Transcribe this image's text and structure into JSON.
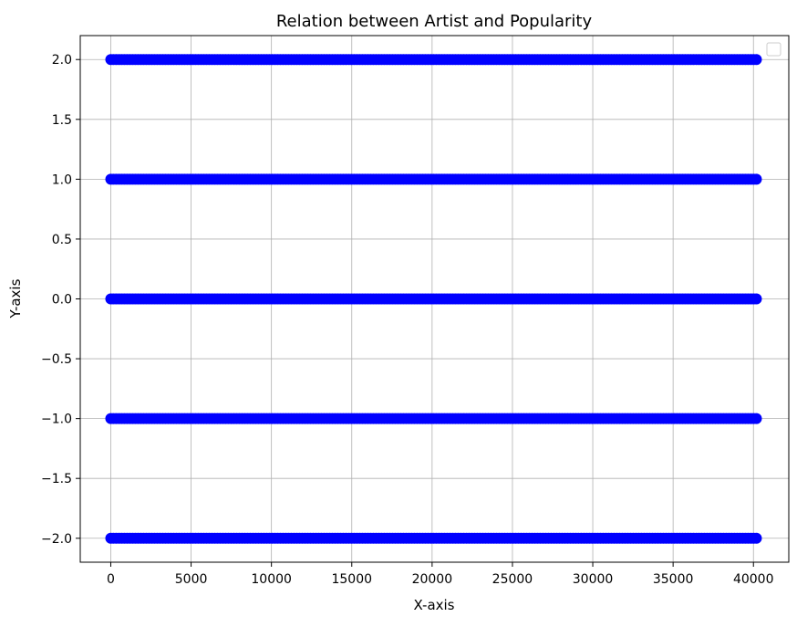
{
  "chart_data": {
    "type": "scatter",
    "title": "Relation between Artist and Popularity",
    "xlabel": "X-axis",
    "ylabel": "Y-axis",
    "xlim": [
      -1900,
      42200
    ],
    "ylim": [
      -2.2,
      2.2
    ],
    "xticks": [
      0,
      5000,
      10000,
      15000,
      20000,
      25000,
      30000,
      35000,
      40000
    ],
    "xtick_labels": [
      "0",
      "5000",
      "10000",
      "15000",
      "20000",
      "25000",
      "30000",
      "35000",
      "40000"
    ],
    "yticks": [
      2.0,
      1.5,
      1.0,
      0.5,
      0.0,
      -0.5,
      -1.0,
      -1.5,
      -2.0
    ],
    "ytick_labels": [
      "2.0",
      "1.5",
      "1.0",
      "0.5",
      "0.0",
      "−0.5",
      "−1.0",
      "−1.5",
      "−2.0"
    ],
    "grid": true,
    "legend": "top-right (empty)",
    "marker_color": "#0000ff",
    "series": [
      {
        "y": 2,
        "x_range": [
          0,
          40200
        ]
      },
      {
        "y": 1,
        "x_range": [
          0,
          40200
        ]
      },
      {
        "y": 0,
        "x_range": [
          0,
          40200
        ]
      },
      {
        "y": -1,
        "x_range": [
          0,
          40200
        ]
      },
      {
        "y": -2,
        "x_range": [
          0,
          40200
        ]
      }
    ]
  }
}
